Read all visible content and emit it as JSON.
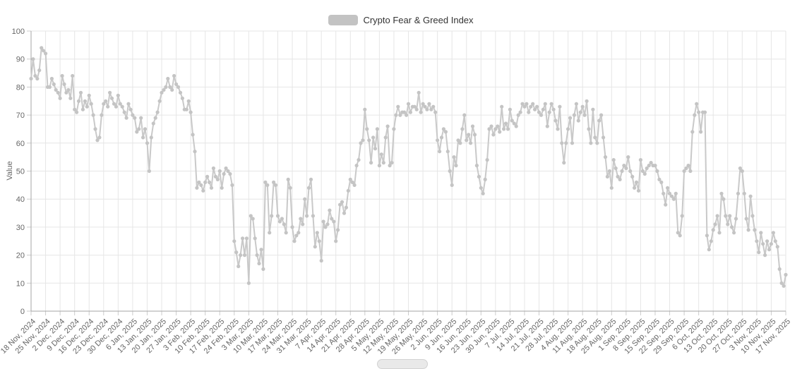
{
  "legend": {
    "label": "Crypto Fear & Greed Index"
  },
  "colors": {
    "line": "#c9c9c9",
    "marker": "#c4c4c4",
    "grid": "#e6e6e6",
    "axis": "#a6a6a6",
    "tick": "#cccccc",
    "label_text": "#666666",
    "legend_text": "#333333",
    "legend_swatch": "#c3c3c3",
    "background": "#ffffff",
    "scrollbar": "#e9e9e9"
  },
  "chart_data": {
    "type": "line",
    "title": "Crypto Fear & Greed Index",
    "xlabel": "",
    "ylabel": "Value",
    "ylim": [
      0,
      100
    ],
    "grid": true,
    "legend_position": "top-center",
    "markers": true,
    "frequency": "daily",
    "start_date": "18 Nov, 2024",
    "end_date": "17 Nov, 2025",
    "y_ticks": [
      0,
      10,
      20,
      30,
      40,
      50,
      60,
      70,
      80,
      90,
      100
    ],
    "x_tick_labels": [
      "18 Nov, 2024",
      "25 Nov, 2024",
      "2 Dec, 2024",
      "9 Dec, 2024",
      "16 Dec, 2024",
      "23 Dec, 2024",
      "30 Dec, 2024",
      "6 Jan, 2025",
      "13 Jan, 2025",
      "20 Jan, 2025",
      "27 Jan, 2025",
      "3 Feb, 2025",
      "10 Feb, 2025",
      "17 Feb, 2025",
      "24 Feb, 2025",
      "3 Mar, 2025",
      "10 Mar, 2025",
      "17 Mar, 2025",
      "24 Mar, 2025",
      "31 Mar, 2025",
      "7 Apr, 2025",
      "14 Apr, 2025",
      "21 Apr, 2025",
      "28 Apr, 2025",
      "5 May, 2025",
      "12 May, 2025",
      "19 May, 2025",
      "26 May, 2025",
      "2 Jun, 2025",
      "9 Jun, 2025",
      "16 Jun, 2025",
      "23 Jun, 2025",
      "30 Jun, 2025",
      "7 Jul, 2025",
      "14 Jul, 2025",
      "21 Jul, 2025",
      "28 Jul, 2025",
      "4 Aug, 2025",
      "11 Aug, 2025",
      "18 Aug, 2025",
      "25 Aug, 2025",
      "1 Sep, 2025",
      "8 Sep, 2025",
      "15 Sep, 2025",
      "22 Sep, 2025",
      "29 Sep, 2025",
      "6 Oct, 2025",
      "13 Oct, 2025",
      "20 Oct, 2025",
      "27 Oct, 2025",
      "3 Nov, 2025",
      "10 Nov, 2025",
      "17 Nov, 2025"
    ],
    "ticks_every_n_points": 7,
    "series": [
      {
        "name": "Crypto Fear & Greed Index",
        "color": "#c9c9c9",
        "values": [
          83,
          90,
          84,
          83,
          86,
          94,
          93,
          92,
          80,
          80,
          83,
          81,
          79,
          78,
          76,
          84,
          81,
          78,
          79,
          76,
          84,
          72,
          71,
          75,
          78,
          72,
          75,
          73,
          77,
          74,
          70,
          65,
          61,
          62,
          70,
          74,
          75,
          73,
          78,
          76,
          74,
          73,
          77,
          74,
          73,
          71,
          69,
          74,
          72,
          70,
          69,
          64,
          65,
          69,
          62,
          65,
          60,
          50,
          62,
          67,
          69,
          71,
          75,
          78,
          79,
          80,
          83,
          80,
          79,
          84,
          81,
          80,
          78,
          76,
          72,
          72,
          75,
          71,
          63,
          57,
          44,
          46,
          45,
          43,
          46,
          48,
          46,
          44,
          51,
          48,
          47,
          50,
          44,
          49,
          51,
          50,
          49,
          45,
          25,
          21,
          16,
          20,
          26,
          20,
          26,
          10,
          34,
          33,
          26,
          20,
          17,
          22,
          15,
          46,
          45,
          28,
          34,
          46,
          45,
          34,
          32,
          33,
          31,
          28,
          47,
          44,
          30,
          25,
          27,
          28,
          33,
          31,
          40,
          34,
          44,
          47,
          34,
          23,
          28,
          25,
          18,
          32,
          30,
          31,
          36,
          33,
          32,
          25,
          29,
          38,
          39,
          35,
          37,
          43,
          47,
          46,
          45,
          52,
          54,
          60,
          61,
          72,
          65,
          61,
          53,
          62,
          58,
          65,
          52,
          56,
          53,
          62,
          66,
          52,
          53,
          65,
          70,
          73,
          70,
          71,
          71,
          70,
          74,
          71,
          73,
          73,
          72,
          78,
          71,
          74,
          73,
          72,
          74,
          72,
          73,
          71,
          61,
          57,
          62,
          65,
          64,
          57,
          50,
          45,
          55,
          52,
          61,
          60,
          65,
          70,
          61,
          63,
          60,
          66,
          63,
          52,
          48,
          44,
          42,
          47,
          54,
          65,
          66,
          63,
          65,
          66,
          64,
          73,
          65,
          67,
          65,
          72,
          68,
          67,
          66,
          70,
          71,
          74,
          73,
          74,
          71,
          73,
          74,
          72,
          73,
          71,
          70,
          72,
          74,
          66,
          71,
          74,
          72,
          68,
          65,
          73,
          60,
          53,
          60,
          65,
          69,
          60,
          70,
          74,
          68,
          71,
          73,
          70,
          75,
          65,
          60,
          72,
          62,
          60,
          68,
          70,
          62,
          55,
          48,
          50,
          44,
          54,
          51,
          48,
          47,
          50,
          52,
          51,
          55,
          50,
          48,
          44,
          46,
          43,
          54,
          50,
          49,
          51,
          52,
          53,
          52,
          52,
          50,
          47,
          46,
          42,
          38,
          44,
          42,
          41,
          40,
          42,
          28,
          27,
          34,
          50,
          51,
          52,
          50,
          64,
          70,
          74,
          71,
          64,
          71,
          71,
          27,
          22,
          25,
          29,
          31,
          34,
          28,
          42,
          40,
          34,
          31,
          34,
          30,
          28,
          33,
          42,
          51,
          50,
          42,
          33,
          29,
          41,
          34,
          29,
          25,
          21,
          28,
          24,
          20,
          25,
          22,
          24,
          28,
          25,
          23,
          15,
          10,
          9,
          13
        ]
      }
    ]
  }
}
